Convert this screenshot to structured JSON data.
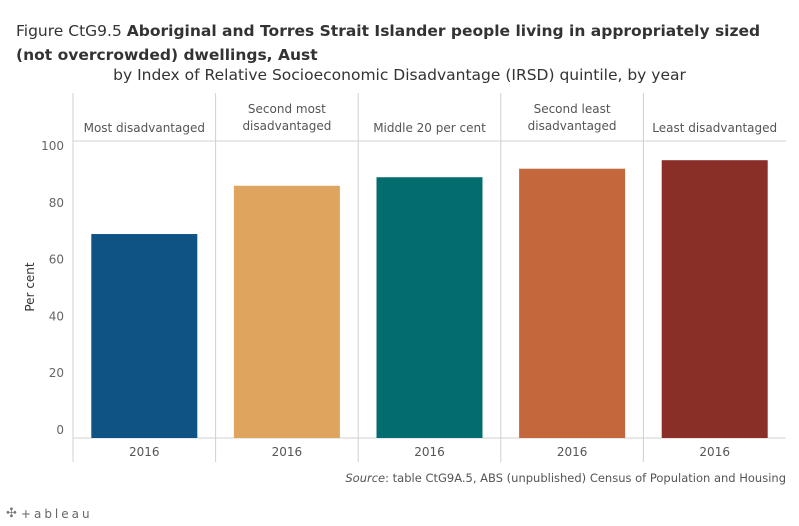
{
  "title": {
    "prefix": "Figure CtG9.5 ",
    "main": "Aboriginal and Torres Strait Islander people living in appropriately sized (not overcrowded) dwellings, Aust",
    "subtitle": "by Index of Relative Socioeconomic Disadvantage (IRSD) quintile, by year"
  },
  "source": {
    "label": "Source",
    "text": ": table CtG9A.5, ABS (unpublished) Census of Population and Housing"
  },
  "footer": {
    "logo_text": "+ableau",
    "logo_icon": "tableau-plus-icon"
  },
  "chart_data": {
    "type": "bar",
    "ylabel": "Per cent",
    "ylim": [
      0,
      100
    ],
    "yticks": [
      0,
      20,
      40,
      60,
      80,
      100
    ],
    "grid": false,
    "panels": [
      {
        "header": [
          "Most disadvantaged"
        ],
        "category": "2016",
        "value": 69,
        "color": "#0e5383"
      },
      {
        "header": [
          "Second most",
          "disadvantaged"
        ],
        "category": "2016",
        "value": 86,
        "color": "#dfa55e"
      },
      {
        "header": [
          "Middle 20 per cent"
        ],
        "category": "2016",
        "value": 89,
        "color": "#036c6f"
      },
      {
        "header": [
          "Second least",
          "disadvantaged"
        ],
        "category": "2016",
        "value": 92,
        "color": "#c4673c"
      },
      {
        "header": [
          "Least disadvantaged"
        ],
        "category": "2016",
        "value": 95,
        "color": "#8a2f27"
      }
    ]
  }
}
